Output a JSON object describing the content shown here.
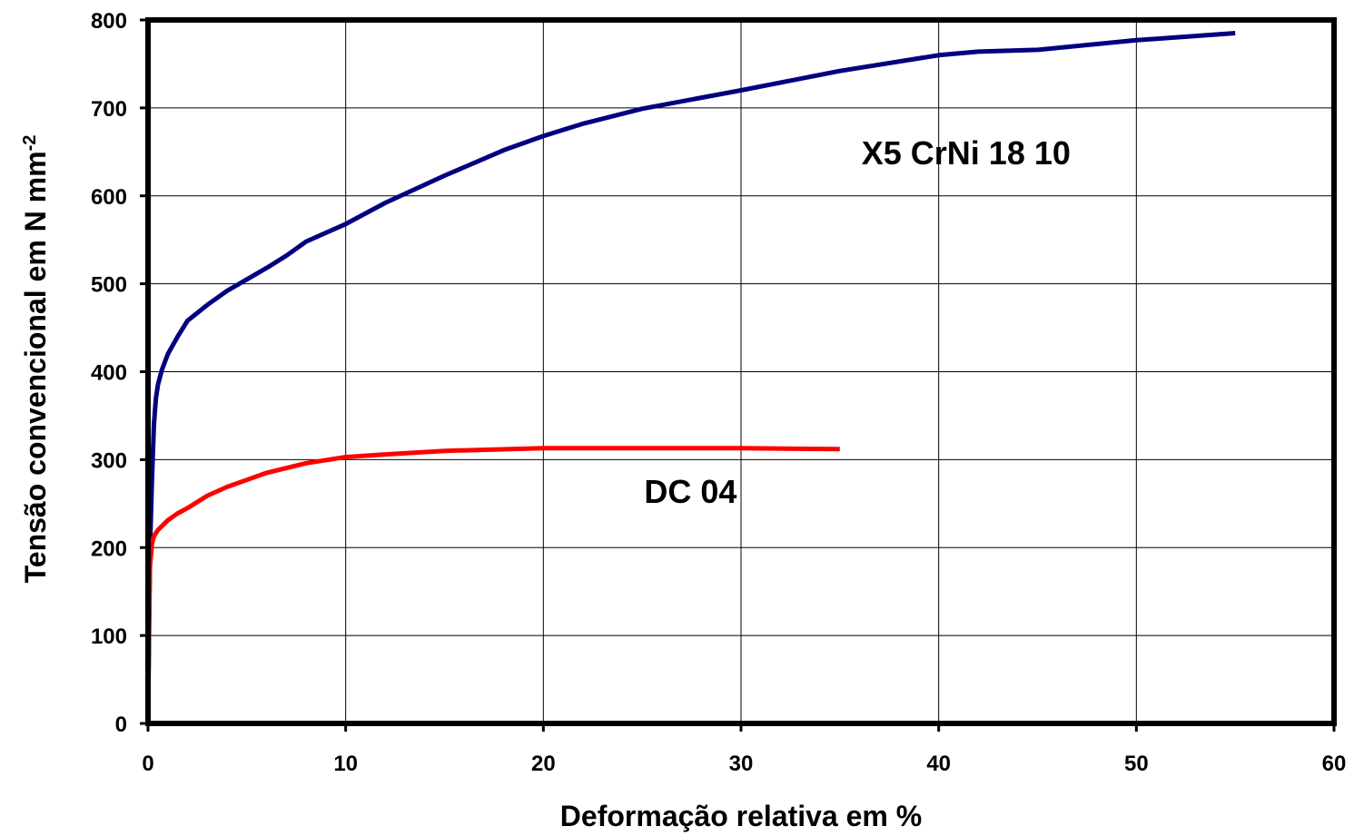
{
  "chart_data": {
    "type": "line",
    "title": "",
    "xlabel": "Deformação relativa em %",
    "ylabel_main": "Tensão convencional em N mm",
    "ylabel_sup": "-2",
    "xlim": [
      0,
      60
    ],
    "ylim": [
      0,
      800
    ],
    "x_ticks": [
      "0",
      "10",
      "20",
      "30",
      "40",
      "50",
      "60"
    ],
    "y_ticks": [
      "0",
      "100",
      "200",
      "300",
      "400",
      "500",
      "600",
      "700",
      "800"
    ],
    "grid": true,
    "legend": "none",
    "series": [
      {
        "name": "X5 CrNi 18 10",
        "color": "#000080",
        "x": [
          0,
          0.1,
          0.2,
          0.3,
          0.4,
          0.5,
          0.7,
          1,
          1.5,
          2,
          3,
          4,
          5,
          6,
          7,
          8,
          10,
          12,
          15,
          18,
          20,
          22,
          25,
          30,
          35,
          40,
          42,
          45,
          50,
          55
        ],
        "y": [
          0,
          200,
          280,
          340,
          370,
          385,
          402,
          420,
          440,
          458,
          476,
          492,
          505,
          518,
          532,
          548,
          568,
          592,
          623,
          652,
          668,
          682,
          699,
          720,
          742,
          760,
          764,
          766,
          777,
          785
        ]
      },
      {
        "name": "DC 04",
        "color": "#ff0000",
        "x": [
          0,
          0.05,
          0.1,
          0.2,
          0.3,
          0.5,
          1,
          1.5,
          2,
          3,
          4,
          5,
          6,
          8,
          10,
          12,
          15,
          20,
          25,
          30,
          35
        ],
        "y": [
          0,
          120,
          180,
          205,
          213,
          220,
          231,
          239,
          245,
          259,
          269,
          277,
          285,
          296,
          303,
          306,
          310,
          313,
          313,
          313,
          312
        ]
      }
    ],
    "annotations": [
      {
        "text": "X5 CrNi 18 10",
        "x": 36.1,
        "y": 636
      },
      {
        "text": "DC 04",
        "x": 25.1,
        "y": 251
      }
    ]
  }
}
